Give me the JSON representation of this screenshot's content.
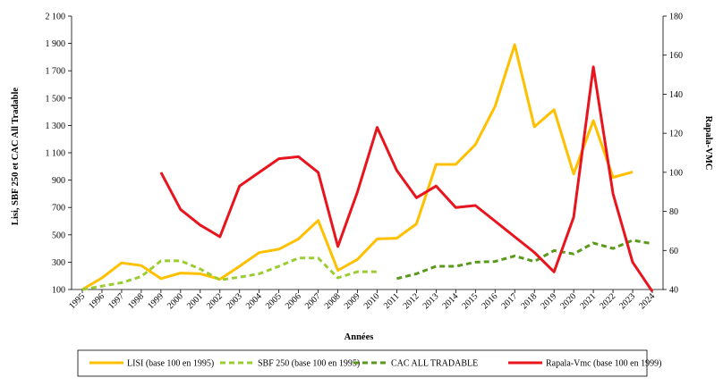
{
  "chart_data": {
    "type": "line",
    "title": "",
    "xlabel": "Années",
    "ylabel_left": "Lisi, SBF 250 et CAC All Tradable",
    "ylabel_right": "Rapala-VMC",
    "x": [
      "1995",
      "1996",
      "1997",
      "1998",
      "1999",
      "2000",
      "2001",
      "2002",
      "2003",
      "2004",
      "2005",
      "2006",
      "2007",
      "2008",
      "2009",
      "2010",
      "2011",
      "2012",
      "2013",
      "2014",
      "2015",
      "2016",
      "2017",
      "2018",
      "2019",
      "2020",
      "2021",
      "2022",
      "2023",
      "2024"
    ],
    "ylim_left": [
      100,
      2100
    ],
    "yticks_left": [
      100,
      300,
      500,
      700,
      900,
      1100,
      1300,
      1500,
      1700,
      1900,
      2100
    ],
    "ytick_labels_left": [
      "100",
      "300",
      "500",
      "700",
      "900",
      "1 100",
      "1 300",
      "1 500",
      "1 700",
      "1 900",
      "2 100"
    ],
    "ylim_right": [
      40,
      180
    ],
    "yticks_right": [
      40,
      60,
      80,
      100,
      120,
      140,
      160,
      180
    ],
    "ytick_labels_right": [
      "40",
      "60",
      "80",
      "100",
      "120",
      "140",
      "160",
      "180"
    ],
    "grid": false,
    "legend_position": "bottom",
    "series": [
      {
        "name": "LISI (base 100 en 1995)",
        "axis": "left",
        "color": "#FFC000",
        "dash": "solid",
        "values": [
          100,
          185,
          295,
          275,
          180,
          220,
          215,
          175,
          270,
          370,
          395,
          470,
          605,
          240,
          320,
          470,
          475,
          580,
          1015,
          1015,
          1160,
          1440,
          1890,
          1290,
          1415,
          945,
          1335,
          920,
          960,
          null
        ]
      },
      {
        "name": "SBF 250 (base 100 en 1995)",
        "axis": "left",
        "color": "#9ACD32",
        "dash": "dashed",
        "values": [
          100,
          125,
          150,
          195,
          310,
          310,
          250,
          170,
          190,
          215,
          270,
          330,
          330,
          185,
          230,
          230,
          null,
          null,
          null,
          null,
          null,
          null,
          null,
          null,
          null,
          null,
          null,
          null,
          null,
          null
        ]
      },
      {
        "name": "CAC ALL TRADABLE",
        "axis": "left",
        "color": "#5A9A1A",
        "dash": "dashed",
        "values": [
          null,
          null,
          null,
          null,
          null,
          null,
          null,
          null,
          null,
          null,
          null,
          null,
          null,
          null,
          null,
          null,
          180,
          215,
          270,
          270,
          300,
          305,
          345,
          305,
          385,
          360,
          440,
          400,
          460,
          435
        ]
      },
      {
        "name": "Rapala-Vmc (base 100 en 1999)",
        "axis": "right",
        "color": "#E8141E",
        "dash": "solid",
        "values": [
          null,
          null,
          null,
          null,
          100,
          81,
          73,
          67,
          93,
          100,
          107,
          108,
          100,
          62,
          90,
          123,
          101,
          87,
          93,
          82,
          83,
          75,
          67,
          59,
          49,
          77,
          154,
          89,
          54,
          39
        ]
      }
    ]
  }
}
